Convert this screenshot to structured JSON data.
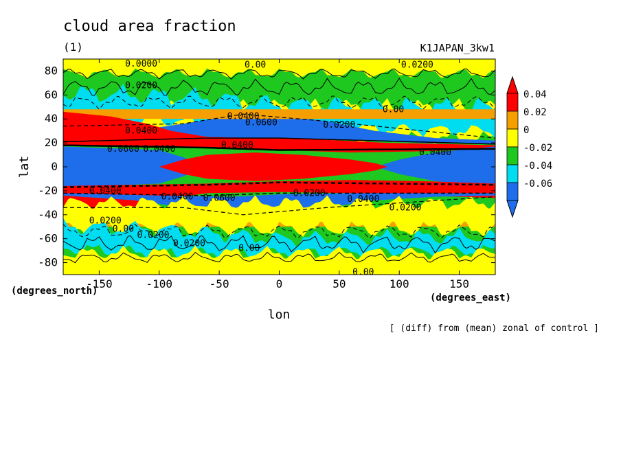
{
  "chart_data": {
    "type": "heatmap",
    "title": "cloud area fraction",
    "subtitle": "(1)",
    "run_label": "K1JAPAN_3kw1",
    "footnote": "[ (diff) from (mean) zonal of control ]",
    "xlabel": "lon",
    "xunits": "(degrees_east)",
    "ylabel": "lat",
    "yunits": "(degrees_north)",
    "xlim": [
      -180,
      180
    ],
    "ylim": [
      -90,
      90
    ],
    "x_ticks": [
      -150,
      -100,
      -50,
      0,
      50,
      100,
      150
    ],
    "x_tick_labels": [
      "-150",
      "-100",
      "-50",
      "0",
      "50",
      "100",
      "150"
    ],
    "y_ticks": [
      -80,
      -60,
      -40,
      -20,
      0,
      20,
      40,
      60,
      80
    ],
    "y_tick_labels": [
      "-80",
      "-60",
      "-40",
      "-20",
      "0",
      "20",
      "40",
      "60",
      "80"
    ],
    "colorbar": {
      "colors": [
        "#1e6eeb",
        "#00dcf0",
        "#1ec81e",
        "#ffff00",
        "#f5a000",
        "#ff0000"
      ],
      "tick_labels": [
        "-0.06",
        "-0.04",
        "-0.02",
        "0",
        "0.02",
        "0.04"
      ],
      "extend": "both"
    },
    "regions": [
      {
        "name": "eq-pos-n",
        "level": 5,
        "x": [
          [
            -180,
            21
          ],
          [
            -110,
            20
          ],
          [
            -60,
            16
          ],
          [
            0,
            12
          ],
          [
            60,
            11
          ],
          [
            110,
            12
          ],
          [
            180,
            14
          ]
        ],
        "y_low": [
          [
            -180,
            14
          ],
          [
            -130,
            11
          ],
          [
            -90,
            8
          ],
          [
            -60,
            6
          ],
          [
            -30,
            5
          ],
          [
            0,
            4
          ],
          [
            40,
            3
          ],
          [
            60,
            4
          ],
          [
            80,
            5
          ],
          [
            120,
            9
          ],
          [
            180,
            13
          ]
        ]
      },
      {
        "name": "eq-pos-s",
        "level": 5,
        "x": [
          [
            -180,
            -15
          ],
          [
            -130,
            -12
          ],
          [
            -90,
            -8
          ],
          [
            -60,
            -6
          ],
          [
            -30,
            -5
          ],
          [
            0,
            -4
          ],
          [
            40,
            -3
          ],
          [
            60,
            -4
          ],
          [
            80,
            -5
          ],
          [
            120,
            -9
          ],
          [
            180,
            -13
          ]
        ],
        "y_low": [
          [
            -180,
            -22
          ],
          [
            -110,
            -21
          ],
          [
            -60,
            -17
          ],
          [
            0,
            -13
          ],
          [
            60,
            -12
          ],
          [
            110,
            -13
          ],
          [
            180,
            -15
          ]
        ]
      }
    ],
    "contour_labels": [
      {
        "text": "0.0000",
        "lon": -115,
        "lat": 86
      },
      {
        "text": "0.00",
        "lon": -20,
        "lat": 85
      },
      {
        "text": "0.0200",
        "lon": 115,
        "lat": 85
      },
      {
        "text": "0.0200",
        "lon": -115,
        "lat": 68
      },
      {
        "text": "0.00",
        "lon": 95,
        "lat": 48
      },
      {
        "text": "0.0400",
        "lon": -30,
        "lat": 42
      },
      {
        "text": "0.0600",
        "lon": -15,
        "lat": 37
      },
      {
        "text": "0.0200",
        "lon": 50,
        "lat": 35
      },
      {
        "text": "0.0400",
        "lon": -115,
        "lat": 30
      },
      {
        "text": "0.0400",
        "lon": -35,
        "lat": 18
      },
      {
        "text": "0.0600",
        "lon": -130,
        "lat": 15
      },
      {
        "text": "0.0400",
        "lon": -100,
        "lat": 15
      },
      {
        "text": "0.0400",
        "lon": 130,
        "lat": 12
      },
      {
        "text": "0.0400",
        "lon": -145,
        "lat": -20
      },
      {
        "text": "0.0400",
        "lon": -85,
        "lat": -25
      },
      {
        "text": "0.0600",
        "lon": -50,
        "lat": -26
      },
      {
        "text": "0.0200",
        "lon": 25,
        "lat": -22
      },
      {
        "text": "0.0400",
        "lon": 70,
        "lat": -27
      },
      {
        "text": "0.0200",
        "lon": 105,
        "lat": -34
      },
      {
        "text": "0.0200",
        "lon": -145,
        "lat": -45
      },
      {
        "text": "0.00",
        "lon": -130,
        "lat": -52
      },
      {
        "text": "0.0200",
        "lon": -105,
        "lat": -57
      },
      {
        "text": "0.0200",
        "lon": -75,
        "lat": -64
      },
      {
        "text": "0.00",
        "lon": -25,
        "lat": -68
      },
      {
        "text": "0.00",
        "lon": 70,
        "lat": -88
      }
    ]
  }
}
